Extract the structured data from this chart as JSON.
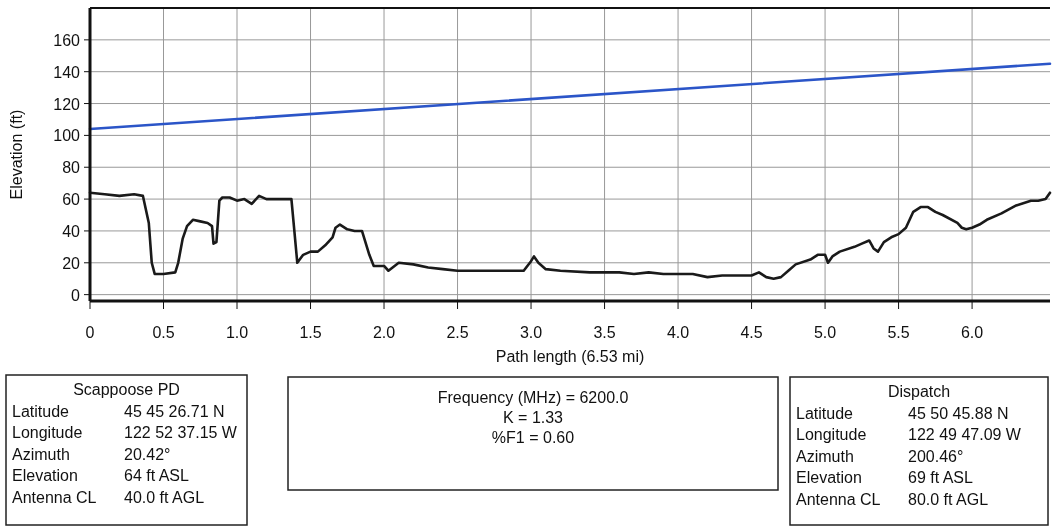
{
  "chart_data": {
    "type": "line",
    "xlabel": "Path length (6.53 mi)",
    "ylabel": "Elevation (ft)",
    "xlim": [
      0,
      6.53
    ],
    "ylim": [
      -4,
      180
    ],
    "xticks": [
      0,
      0.5,
      {
        "value": 1,
        "label": "1.0"
      },
      1.5,
      {
        "value": 2,
        "label": "2.0"
      },
      2.5,
      {
        "value": 3,
        "label": "3.0"
      },
      3.5,
      {
        "value": 4,
        "label": "4.0"
      },
      4.5,
      {
        "value": 5,
        "label": "5.0"
      },
      5.5,
      {
        "value": 6,
        "label": "6.0"
      }
    ],
    "yticks": [
      0,
      20,
      40,
      60,
      80,
      100,
      120,
      140,
      160
    ],
    "grid": true,
    "marker": "none",
    "line_style": "solid",
    "series": [
      {
        "color": "#1a1a1a",
        "x": [
          0,
          0.1,
          0.2,
          0.3,
          0.36,
          0.4,
          0.42,
          0.44,
          0.5,
          0.58,
          0.6,
          0.63,
          0.66,
          0.7,
          0.75,
          0.8,
          0.83,
          0.84,
          0.86,
          0.88,
          0.9,
          0.95,
          1.0,
          1.05,
          1.1,
          1.15,
          1.2,
          1.3,
          1.37,
          1.39,
          1.41,
          1.45,
          1.5,
          1.55,
          1.6,
          1.65,
          1.67,
          1.7,
          1.75,
          1.8,
          1.85,
          1.9,
          1.93,
          2.0,
          2.03,
          2.1,
          2.2,
          2.3,
          2.4,
          2.5,
          2.6,
          2.8,
          2.95,
          3.0,
          3.02,
          3.05,
          3.1,
          3.2,
          3.4,
          3.6,
          3.7,
          3.8,
          3.9,
          4.0,
          4.1,
          4.2,
          4.3,
          4.4,
          4.5,
          4.55,
          4.6,
          4.65,
          4.7,
          4.75,
          4.8,
          4.9,
          4.95,
          5.0,
          5.02,
          5.05,
          5.1,
          5.2,
          5.25,
          5.3,
          5.33,
          5.36,
          5.4,
          5.45,
          5.5,
          5.55,
          5.6,
          5.65,
          5.7,
          5.75,
          5.8,
          5.9,
          5.93,
          5.96,
          6.0,
          6.05,
          6.1,
          6.2,
          6.3,
          6.4,
          6.45,
          6.5,
          6.53
        ],
        "values": [
          64,
          63,
          62,
          63,
          62,
          45,
          20,
          13,
          13,
          14,
          20,
          35,
          43,
          47,
          46,
          45,
          43,
          32,
          33,
          59,
          61,
          61,
          59,
          60,
          57,
          62,
          60,
          60,
          60,
          40,
          20,
          25,
          27,
          27,
          31,
          36,
          42,
          44,
          41,
          40,
          40,
          25,
          18,
          18,
          15,
          20,
          19,
          17,
          16,
          15,
          15,
          15,
          15,
          21,
          24,
          20,
          16,
          15,
          14,
          14,
          13,
          14,
          13,
          13,
          13,
          11,
          12,
          12,
          12,
          14,
          11,
          10,
          11,
          15,
          19,
          22,
          25,
          25,
          20,
          24,
          27,
          30,
          32,
          34,
          29,
          27,
          33,
          36,
          38,
          42,
          52,
          55,
          55,
          52,
          50,
          45,
          42,
          41,
          42,
          44,
          47,
          51,
          56,
          59,
          59,
          60,
          64
        ]
      },
      {
        "color": "#2b55c8",
        "x": [
          0,
          6.53
        ],
        "values": [
          104,
          145
        ]
      }
    ],
    "annotations": [
      "Scappoose PD\nLatitude\t45 45 26.71 N\nLongitude\t122 52 37.15 W\nAzimuth\t20.42°\nElevation\t64 ft ASL\nAntenna CL\t40.0 ft AGL",
      "Frequency (MHz) = 6200.0\nK = 1.33\n%F1 = 0.60",
      "Dispatch\nLatitude\t45 50 45.88 N\nLongitude\t122 49 47.09 W\nAzimuth\t200.46°\nElevation\t69 ft ASL\nAntenna CL\t80.0 ft AGL"
    ]
  }
}
